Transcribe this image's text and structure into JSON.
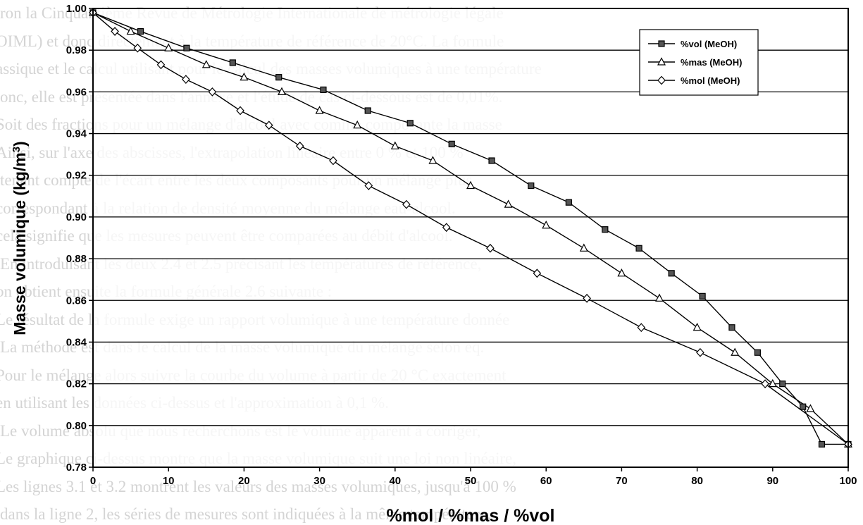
{
  "background_text": [
    "ron la Cinquantième Revue de Métrologie Internationale de métrologie légale",
    "OIML) et donc directement à la température de référence de 20°C. La formule",
    "assique et le calcul utilisant pour le calcul des masses volumiques à une température",
    "onc, elle est présentée dans l'annexe et l'étude de cas ci-dessous est de 0,01%.",
    "Soit des fractions pour un mélange d'alcool avec comme composante la masse",
    "Ainsi, sur l'axe des abscisses, l'extrapolation linéaire entre 0 % et 100 %",
    "tenant compte de l'écart entre les deux composants pour un mélange plus",
    "correspondant à la relation de densité moyenne du mélange eau-alcool.",
    "cela signifie que les mesures peuvent être comparées au débit d'alcool.",
    "En introduisant les deux 2.4 et 2.5 précisant les températures de référence,",
    "on obtient ensuite la formule générale 2.6 suivante :",
    "Le résultat de la formule exige un rapport volumique à une température donnée",
    "La méthode est dans le calcul de la masse volumique du mélange selon eq.",
    "Pour le mélange alors suivre la courbe du volume à partir de 20 °C exactement",
    "en utilisant les données ci-dessus et l'approximation à 0,1 %.",
    "Le volume absolu que nous recherchons est le volume apparent à corriger,",
    "Le graphique ci-dessus montre que la masse volumique suit une loi non linéaire,",
    "Les lignes 3.1 et 3.2 montrent les valeurs des masses volumiques, jusqu'à 100 %",
    "dans la ligne 2, les séries de mesures sont indiquées à la même température."
  ],
  "chart_data": {
    "type": "line",
    "xlabel": "%mol / %mas / %vol",
    "ylabel": "Masse volumique (kg/m³)",
    "ylabel_main": "Masse volumique (kg/m",
    "ylabel_sup": "3",
    "ylabel_end": ")",
    "xlim": [
      0,
      100
    ],
    "ylim": [
      0.78,
      1.0
    ],
    "x_ticks": [
      0,
      10,
      20,
      30,
      40,
      50,
      60,
      70,
      80,
      90,
      100
    ],
    "y_ticks": [
      0.78,
      0.8,
      0.82,
      0.84,
      0.86,
      0.88,
      0.9,
      0.92,
      0.94,
      0.96,
      0.98,
      1.0
    ],
    "y_tick_labels": [
      "0.78",
      "0.80",
      "0.82",
      "0.84",
      "0.86",
      "0.88",
      "0.90",
      "0.92",
      "0.94",
      "0.96",
      "0.98",
      "1.00"
    ],
    "grid": "horizontal",
    "legend_position": "top-right",
    "series": [
      {
        "name": "%vol (MeOH)",
        "marker": "square",
        "x": [
          0,
          6.3,
          12.4,
          18.5,
          24.6,
          30.5,
          36.4,
          42.0,
          47.5,
          52.8,
          58.0,
          63.0,
          67.8,
          72.3,
          76.6,
          80.7,
          84.6,
          88.0,
          91.3,
          94.0,
          96.5,
          100
        ],
        "y": [
          0.998,
          0.989,
          0.981,
          0.974,
          0.967,
          0.961,
          0.951,
          0.945,
          0.935,
          0.927,
          0.915,
          0.907,
          0.894,
          0.885,
          0.873,
          0.862,
          0.847,
          0.835,
          0.82,
          0.809,
          0.791,
          0.791
        ]
      },
      {
        "name": "%mas (MeOH)",
        "marker": "triangle",
        "x": [
          0,
          5.0,
          10.0,
          15.0,
          20.0,
          25.0,
          30.0,
          35.0,
          40.0,
          45.0,
          50.0,
          55.0,
          60.0,
          65.0,
          70.0,
          75.0,
          80.0,
          85.0,
          90.0,
          95.0,
          100
        ],
        "y": [
          0.998,
          0.989,
          0.981,
          0.973,
          0.967,
          0.96,
          0.951,
          0.944,
          0.934,
          0.927,
          0.915,
          0.906,
          0.896,
          0.885,
          0.873,
          0.861,
          0.847,
          0.835,
          0.82,
          0.808,
          0.791
        ]
      },
      {
        "name": "%mol (MeOH)",
        "marker": "diamond",
        "x": [
          0,
          2.9,
          5.9,
          9.0,
          12.3,
          15.8,
          19.5,
          23.3,
          27.4,
          31.8,
          36.5,
          41.5,
          46.8,
          52.6,
          58.8,
          65.4,
          72.6,
          80.4,
          89.0,
          100
        ],
        "y": [
          0.998,
          0.989,
          0.981,
          0.973,
          0.966,
          0.96,
          0.951,
          0.944,
          0.934,
          0.927,
          0.915,
          0.906,
          0.895,
          0.885,
          0.873,
          0.861,
          0.847,
          0.835,
          0.82,
          0.791
        ]
      }
    ]
  }
}
